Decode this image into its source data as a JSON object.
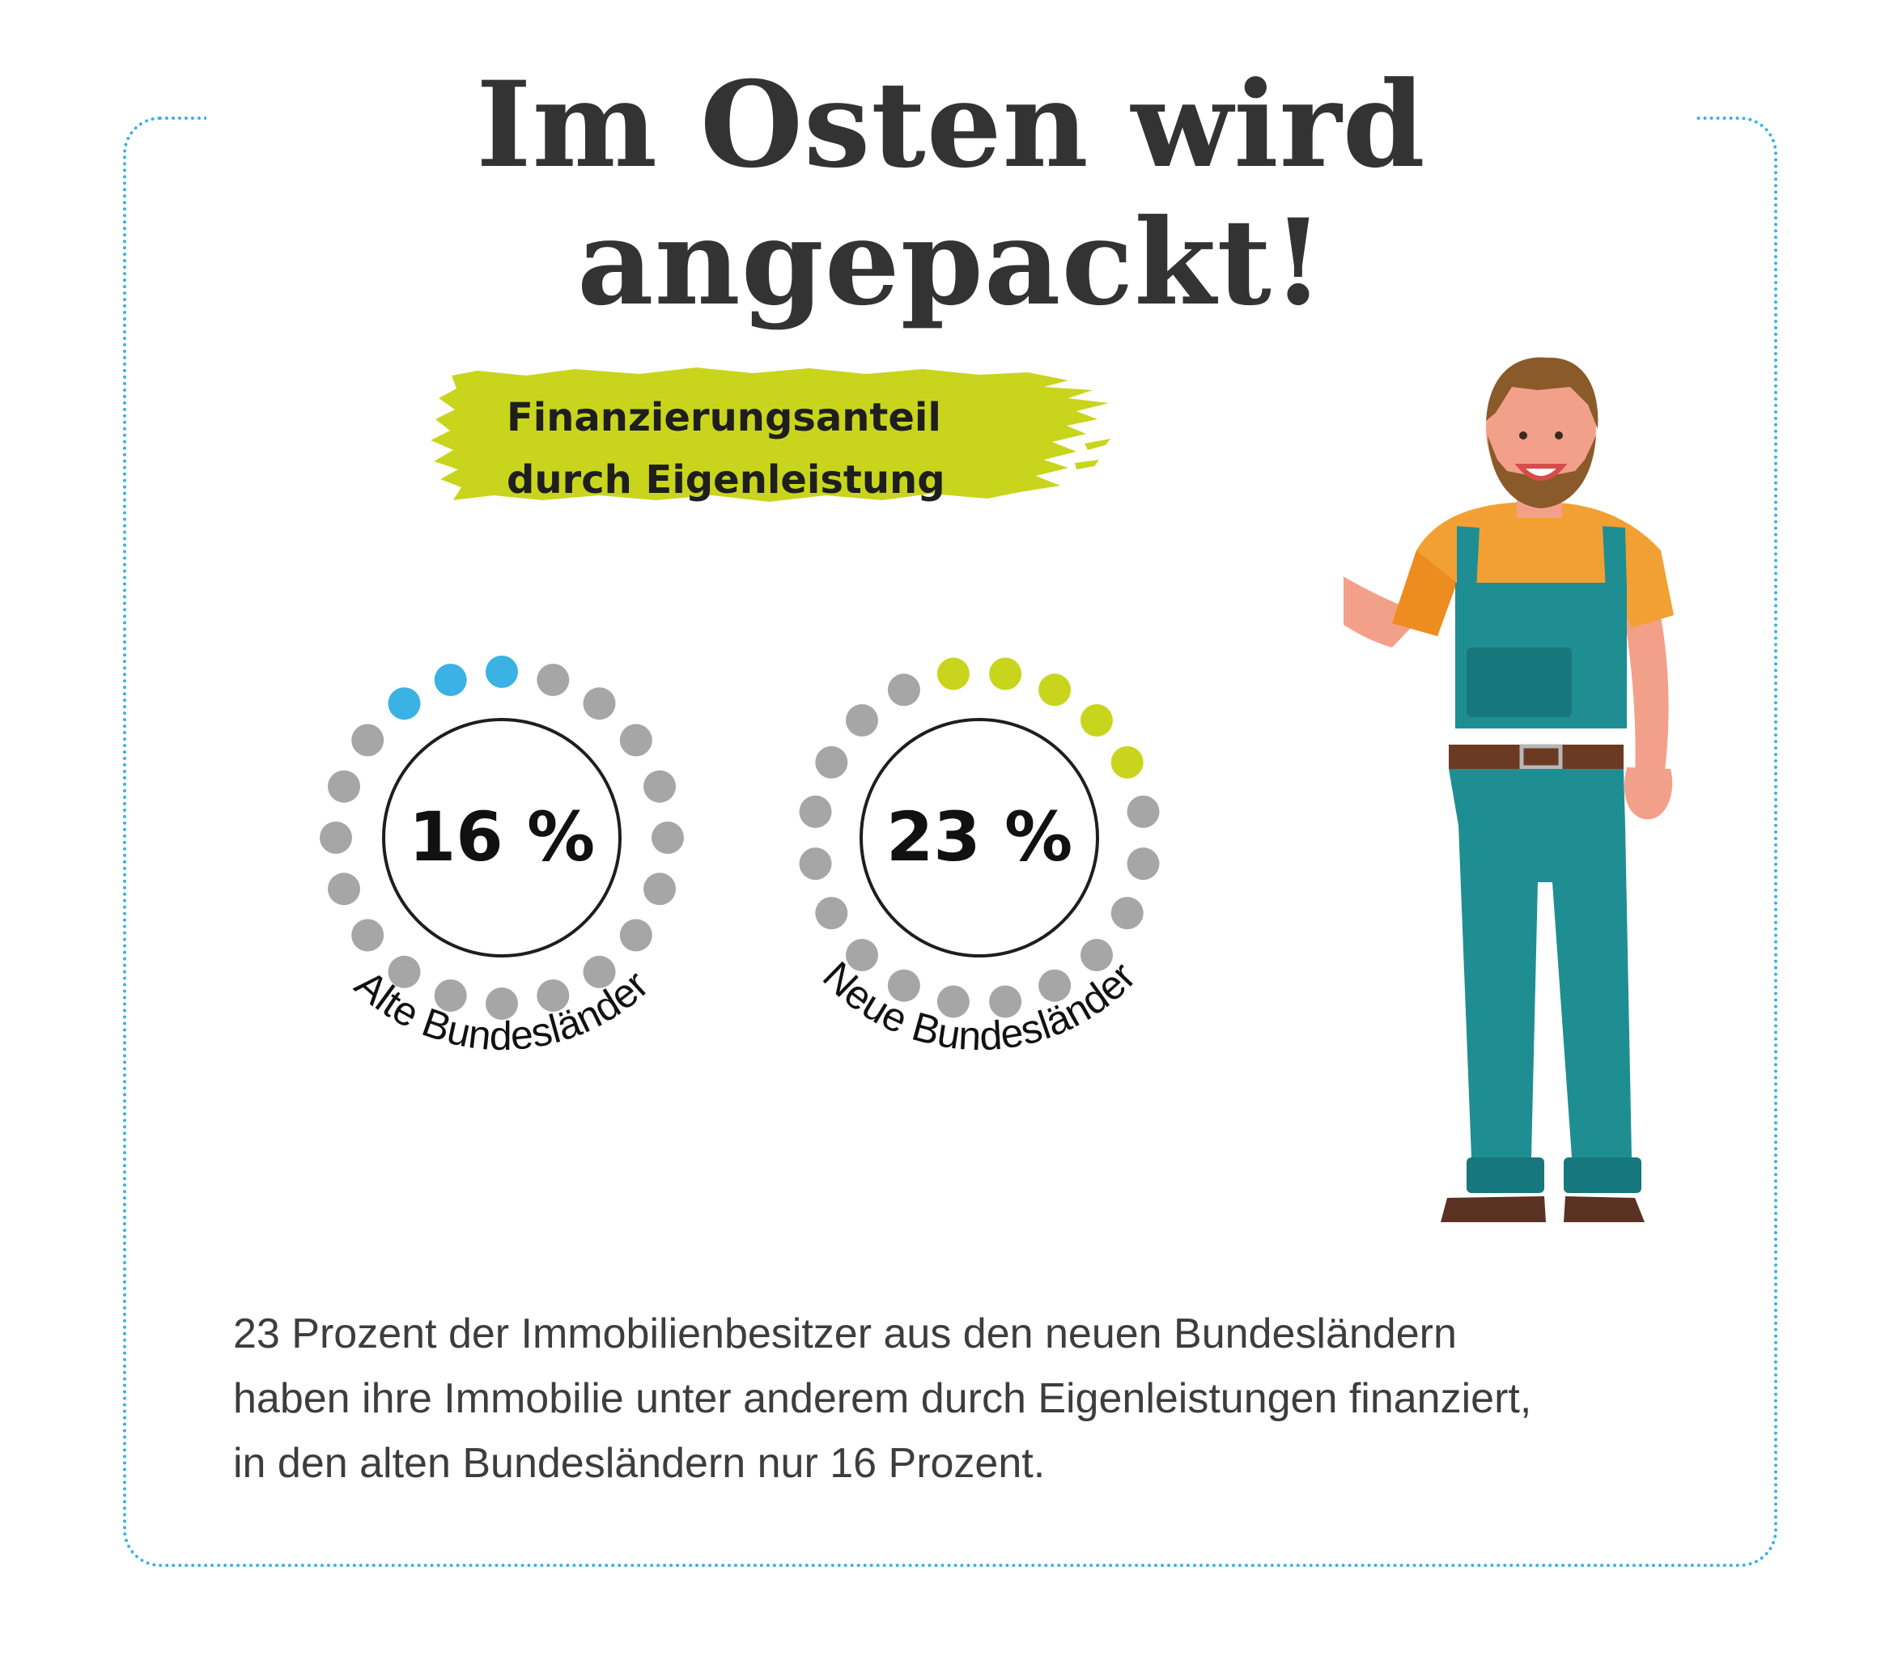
{
  "title": "Im Osten wird angepackt!",
  "label": {
    "line1": "Finanzierungsanteil",
    "line2": "durch Eigenleistung"
  },
  "chart_data": [
    {
      "type": "pie",
      "label": "Alte Bundesländer",
      "value": 16,
      "value_text": "16 %",
      "unit": "%",
      "color": "#3ab2e3",
      "empty_color": "#a6a6a6",
      "dots": 20
    },
    {
      "type": "pie",
      "label": "Neue Bundesländer",
      "value": 23,
      "value_text": "23 %",
      "unit": "%",
      "color": "#c9d51d",
      "empty_color": "#a6a6a6",
      "dots": 20
    }
  ],
  "description": {
    "line1": "23 Prozent der Immobilienbesitzer aus den neuen Bundesländern",
    "line2": "haben ihre Immobilie unter anderem durch Eigenleistungen finanziert,",
    "line3": "in den alten Bundesländern nur 16 Prozent."
  },
  "colors": {
    "frame": "#3ab2e3",
    "highlight": "#c9d51d",
    "title": "#333333"
  },
  "illustration": {
    "icon": "painter-with-brush-icon"
  }
}
